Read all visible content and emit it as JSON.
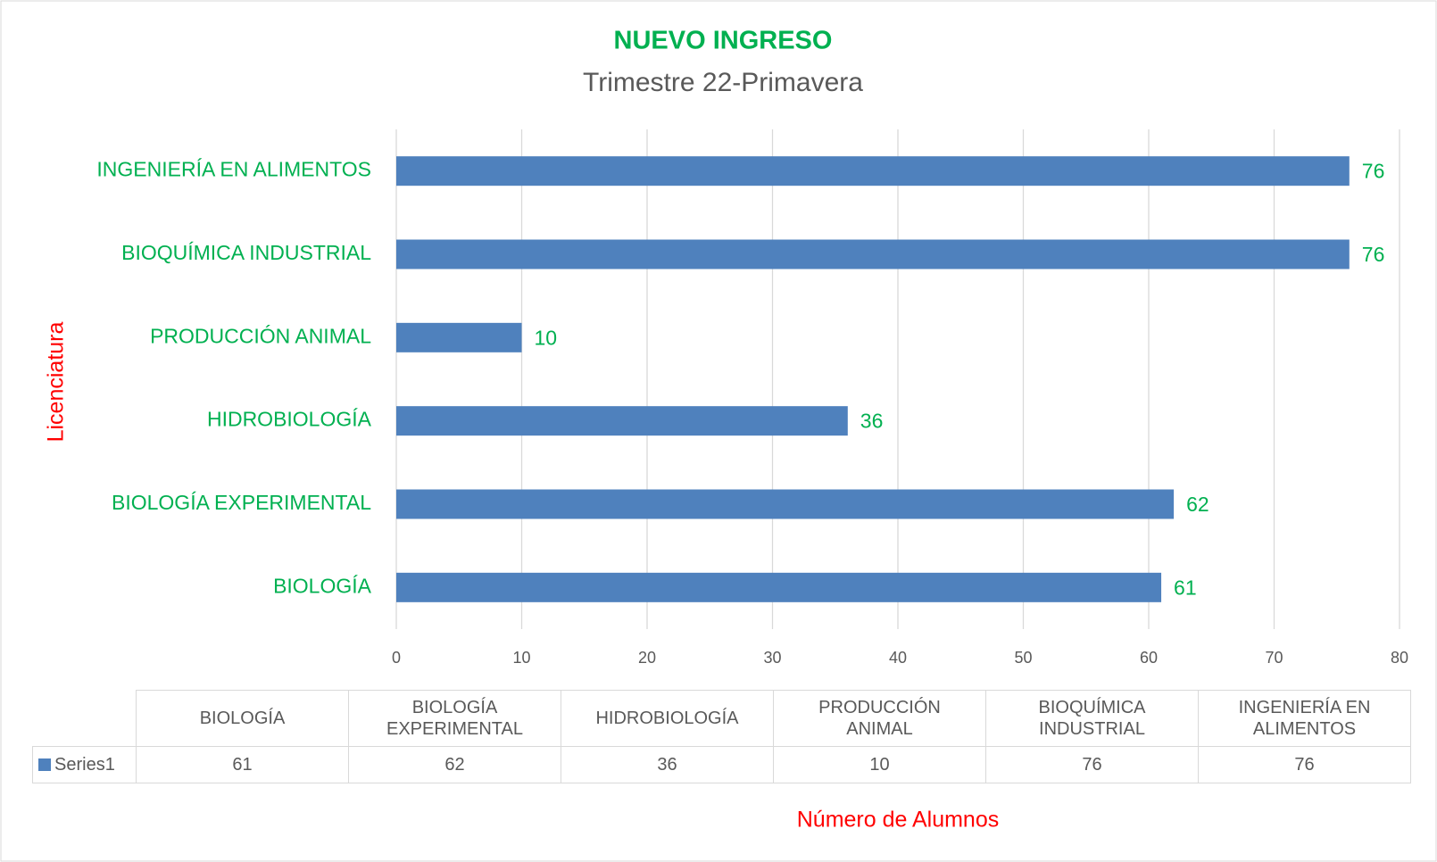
{
  "chart_data": {
    "type": "hbar",
    "title": "NUEVO INGRESO",
    "subtitle": "Trimestre 22-Primavera",
    "xlabel": "Número de Alumnos",
    "ylabel": "Licenciatura",
    "categories": [
      "BIOLOGÍA",
      "BIOLOGÍA EXPERIMENTAL",
      "HIDROBIOLOGÍA",
      "PRODUCCIÓN ANIMAL",
      "BIOQUÍMICA INDUSTRIAL",
      "INGENIERÍA EN ALIMENTOS"
    ],
    "series": [
      {
        "name": "Series1",
        "color": "#4f81bd",
        "values": [
          61,
          62,
          36,
          10,
          76,
          76
        ]
      }
    ],
    "xlim": [
      0,
      80
    ],
    "xticks": [
      0,
      10,
      20,
      30,
      40,
      50,
      60,
      70,
      80
    ],
    "grid": true,
    "data_table": true
  }
}
